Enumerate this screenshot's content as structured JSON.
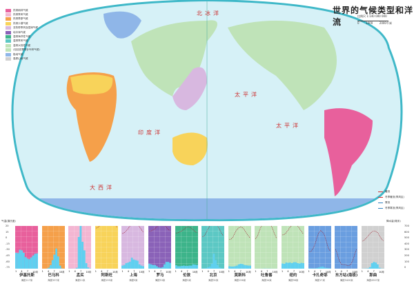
{
  "title": "世界的气候类型和洋流",
  "scale": {
    "ratio": "比例尺 1:140 000 000",
    "ticks": [
      "0",
      "1000",
      "2000千米"
    ]
  },
  "legend": [
    {
      "label": "热带雨林气候",
      "color": "#e8609c"
    },
    {
      "label": "热带季风气候",
      "color": "#f3b6d2"
    },
    {
      "label": "热带草原气候",
      "color": "#f5a04a"
    },
    {
      "label": "热带沙漠气候",
      "color": "#f8d35a"
    },
    {
      "label": "亚热带季风及湿润气候",
      "color": "#d8b8e0"
    },
    {
      "label": "地中海气候",
      "color": "#8a62b8"
    },
    {
      "label": "温带海洋性气候",
      "color": "#3db48a"
    },
    {
      "label": "温带季风气候",
      "color": "#5cc8c4"
    },
    {
      "label": "温带大陆性气候",
      "color": "#bfe3b8"
    },
    {
      "label": "(包括亚寒带针叶林气候)",
      "color": "#bfe3b8"
    },
    {
      "label": "极地气候",
      "color": "#8fb6e8"
    },
    {
      "label": "高原山地气候",
      "color": "#d0d0d0"
    }
  ],
  "current_legend": [
    {
      "label": "暖流",
      "color": "#d03030"
    },
    {
      "label": "冬季暖流(季风区)",
      "color": "#d03030"
    },
    {
      "label": "寒流",
      "color": "#2f80c0"
    },
    {
      "label": "冬季寒流(季风区)",
      "color": "#2f80c0"
    }
  ],
  "oceans": [
    "太平洋",
    "大西洋",
    "印度洋",
    "北冰洋",
    "太平洋"
  ],
  "charts_axis": {
    "temp_label": "气温(摄氏度)",
    "temp_ticks": [
      "20",
      "15",
      "0",
      "-15",
      "-30",
      "-45",
      "-60",
      "-75"
    ],
    "precip_label": "降水量(毫米)",
    "precip_ticks": [
      "700",
      "600",
      "500",
      "400",
      "300",
      "200",
      "100",
      "0"
    ],
    "months": [
      "1",
      "4",
      "7",
      "10月"
    ]
  },
  "charts": [
    {
      "name": "伊基托斯",
      "elev": "海拔117米",
      "color": "#e8609c",
      "temp": [
        26,
        26,
        26,
        26,
        25,
        25,
        25,
        26,
        26,
        26,
        26,
        26
      ],
      "precip": [
        260,
        255,
        310,
        300,
        260,
        190,
        165,
        155,
        185,
        215,
        245,
        250
      ]
    },
    {
      "name": "巴马科",
      "elev": "海拔337米",
      "color": "#f5a04a",
      "temp": [
        25,
        28,
        30,
        31,
        30,
        28,
        26,
        25,
        26,
        27,
        26,
        25
      ],
      "precip": [
        0,
        0,
        3,
        15,
        60,
        140,
        230,
        330,
        200,
        50,
        5,
        0
      ]
    },
    {
      "name": "孟买",
      "elev": "海拔11米",
      "color": "#f3b6d2",
      "temp": [
        24,
        25,
        27,
        28,
        30,
        29,
        27,
        27,
        27,
        28,
        27,
        25
      ],
      "precip": [
        3,
        2,
        1,
        2,
        15,
        520,
        710,
        440,
        300,
        90,
        20,
        5
      ]
    },
    {
      "name": "阿斯旺",
      "elev": "海拔195米",
      "color": "#f8d35a",
      "temp": [
        15,
        17,
        21,
        26,
        30,
        33,
        33,
        33,
        31,
        28,
        22,
        17
      ],
      "precip": [
        0,
        0,
        0,
        0,
        1,
        0,
        0,
        0,
        0,
        0,
        0,
        0
      ]
    },
    {
      "name": "上海",
      "elev": "海拔5米",
      "color": "#d8b8e0",
      "temp": [
        3,
        5,
        9,
        14,
        20,
        24,
        28,
        28,
        23,
        18,
        12,
        6
      ],
      "precip": [
        50,
        60,
        90,
        100,
        115,
        180,
        150,
        140,
        130,
        70,
        50,
        40
      ]
    },
    {
      "name": "罗马",
      "elev": "海拔53米",
      "color": "#8a62b8",
      "temp": [
        8,
        9,
        11,
        14,
        18,
        22,
        25,
        25,
        22,
        17,
        12,
        9
      ],
      "precip": [
        80,
        70,
        60,
        60,
        40,
        20,
        15,
        25,
        70,
        110,
        110,
        95
      ]
    },
    {
      "name": "伦敦",
      "elev": "海拔5米",
      "color": "#3db48a",
      "temp": [
        4,
        5,
        7,
        9,
        12,
        16,
        18,
        17,
        15,
        11,
        7,
        5
      ],
      "precip": [
        55,
        40,
        40,
        45,
        50,
        45,
        45,
        50,
        50,
        70,
        65,
        60
      ]
    },
    {
      "name": "北京",
      "elev": "海拔31米",
      "color": "#5cc8c4",
      "temp": [
        -4,
        -2,
        5,
        14,
        20,
        24,
        26,
        25,
        20,
        13,
        4,
        -2
      ],
      "precip": [
        3,
        5,
        9,
        25,
        35,
        80,
        245,
        140,
        60,
        20,
        8,
        3
      ]
    },
    {
      "name": "莫斯科",
      "elev": "海拔156米",
      "color": "#bfe3b8",
      "temp": [
        -10,
        -9,
        -4,
        5,
        12,
        16,
        18,
        16,
        11,
        4,
        -2,
        -7
      ],
      "precip": [
        40,
        35,
        35,
        40,
        50,
        70,
        80,
        75,
        60,
        55,
        50,
        50
      ]
    },
    {
      "name": "吐鲁番",
      "elev": "海拔34米",
      "color": "#bfe3b8",
      "temp": [
        -9,
        -2,
        9,
        19,
        25,
        30,
        32,
        30,
        23,
        13,
        2,
        -7
      ],
      "precip": [
        1,
        1,
        1,
        1,
        2,
        4,
        2,
        3,
        2,
        1,
        1,
        1
      ]
    },
    {
      "name": "纽约",
      "elev": "海拔96米",
      "color": "#bfe3b8",
      "temp": [
        0,
        1,
        5,
        11,
        17,
        22,
        25,
        24,
        20,
        14,
        8,
        2
      ],
      "precip": [
        85,
        80,
        100,
        95,
        100,
        90,
        105,
        105,
        90,
        85,
        95,
        90
      ]
    },
    {
      "name": "卡扎奇耶",
      "elev": "海拔17米",
      "color": "#6a9ee0",
      "temp": [
        -38,
        -36,
        -30,
        -20,
        -6,
        5,
        10,
        6,
        -1,
        -15,
        -30,
        -36
      ],
      "precip": [
        8,
        7,
        6,
        6,
        10,
        20,
        30,
        35,
        18,
        12,
        9,
        8
      ]
    },
    {
      "name": "东方站(南极)",
      "elev": "海拔3420米",
      "color": "#6a9ee0",
      "temp": [
        -32,
        -44,
        -58,
        -65,
        -66,
        -66,
        -68,
        -68,
        -66,
        -58,
        -44,
        -32
      ],
      "precip": [
        0,
        0,
        0,
        0,
        0,
        0,
        0,
        0,
        0,
        0,
        0,
        0
      ]
    },
    {
      "name": "那曲",
      "elev": "海拔4507米",
      "color": "#d0d0d0",
      "temp": [
        -14,
        -11,
        -7,
        -2,
        3,
        7,
        9,
        8,
        5,
        -2,
        -9,
        -13
      ],
      "precip": [
        2,
        3,
        4,
        8,
        25,
        90,
        110,
        100,
        70,
        15,
        3,
        2
      ]
    }
  ],
  "chart_note": "年平均气温/年降水量"
}
